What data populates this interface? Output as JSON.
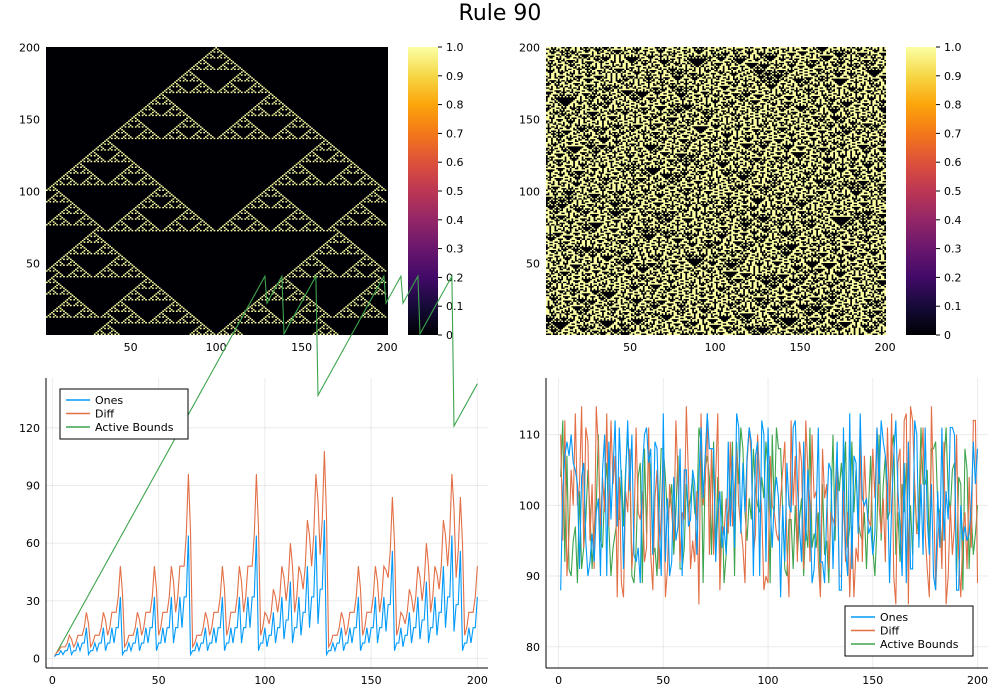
{
  "page": {
    "title": "Rule 90"
  },
  "colors": {
    "ones": "#009AFA",
    "diff": "#E26F46",
    "active_bounds": "#3DA44D",
    "heatmap_low": "#000004",
    "heatmap_high": "#FCFFA4"
  },
  "chart_data": [
    {
      "type": "heatmap",
      "panel": "top-left",
      "title": "",
      "description_values": "binary cell states (0 or 1) of Rule 90 evolution from a single seed",
      "x": {
        "ticks": [
          50,
          100,
          150,
          200
        ],
        "range": [
          1,
          200
        ]
      },
      "y": {
        "ticks": [
          50,
          100,
          150,
          200
        ],
        "range": [
          1,
          200
        ]
      },
      "colorbar": {
        "range": [
          0,
          1
        ],
        "ticks": [
          "0",
          "0.1",
          "0.2",
          "0.3",
          "0.4",
          "0.5",
          "0.6",
          "0.7",
          "0.8",
          "0.9",
          "1.0"
        ],
        "colormap": "inferno"
      },
      "grid": false
    },
    {
      "type": "heatmap",
      "panel": "top-right",
      "title": "",
      "description_values": "binary cell states (0 or 1) of Rule 90 evolution from random initial state",
      "x": {
        "ticks": [
          50,
          100,
          150,
          200
        ],
        "range": [
          1,
          200
        ]
      },
      "y": {
        "ticks": [
          50,
          100,
          150,
          200
        ],
        "range": [
          1,
          200
        ]
      },
      "colorbar": {
        "range": [
          0,
          1
        ],
        "ticks": [
          "0",
          "0.1",
          "0.2",
          "0.3",
          "0.4",
          "0.5",
          "0.6",
          "0.7",
          "0.8",
          "0.9",
          "1.0"
        ],
        "colormap": "inferno"
      },
      "grid": false
    },
    {
      "type": "line",
      "panel": "bottom-left",
      "title": "",
      "xlabel": "",
      "ylabel": "",
      "xlim": [
        -3,
        205
      ],
      "ylim": [
        -5,
        146
      ],
      "xticks": [
        0,
        50,
        100,
        150,
        200
      ],
      "yticks": [
        0,
        30,
        60,
        90,
        120
      ],
      "legend": "top-left",
      "grid": true,
      "series": [
        {
          "name": "Ones",
          "color": "#009AFA"
        },
        {
          "name": "Diff",
          "color": "#E26F46"
        },
        {
          "name": "Active Bounds",
          "color": "#3DA44D"
        }
      ]
    },
    {
      "type": "line",
      "panel": "bottom-right",
      "title": "",
      "xlabel": "",
      "ylabel": "",
      "xlim": [
        -6,
        205
      ],
      "ylim": [
        77,
        118
      ],
      "xticks": [
        0,
        50,
        100,
        150,
        200
      ],
      "yticks": [
        80,
        90,
        100,
        110
      ],
      "legend": "bottom-right",
      "grid": true,
      "series": [
        {
          "name": "Ones",
          "color": "#009AFA"
        },
        {
          "name": "Diff",
          "color": "#E26F46"
        },
        {
          "name": "Active Bounds",
          "color": "#3DA44D"
        }
      ]
    }
  ]
}
